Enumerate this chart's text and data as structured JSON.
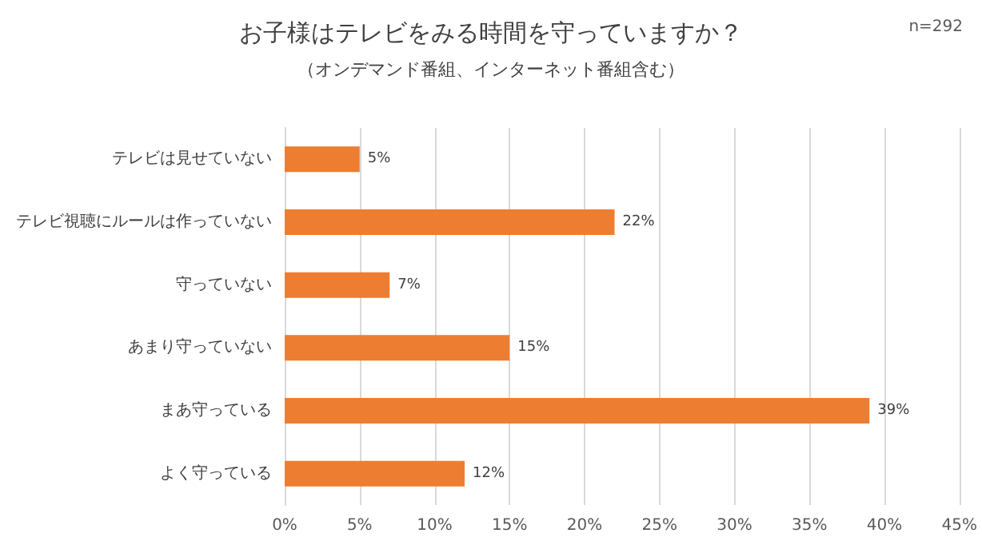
{
  "chart_data": {
    "type": "bar",
    "orientation": "horizontal",
    "title": "お子様はテレビをみる時間を守っていますか？",
    "subtitle": "（オンデマンド番組、インターネット番組含む）",
    "annotations": [
      "n=292"
    ],
    "categories": [
      "テレビは見せていない",
      "テレビ視聴にルールは作っていない",
      "守っていない",
      "あまり守っていない",
      "まあ守っている",
      "よく守っている"
    ],
    "values": [
      5,
      22,
      7,
      15,
      39,
      12
    ],
    "color": "#ed7d31",
    "value_labels": [
      "5%",
      "22%",
      "7%",
      "15%",
      "39%",
      "12%"
    ],
    "xlim": [
      0,
      45
    ],
    "xticks": [
      {
        "value": 0,
        "label": "0%"
      },
      {
        "value": 5,
        "label": "5%"
      },
      {
        "value": 10,
        "label": "10%"
      },
      {
        "value": 15,
        "label": "15%"
      },
      {
        "value": 20,
        "label": "20%"
      },
      {
        "value": 25,
        "label": "25%"
      },
      {
        "value": 30,
        "label": "30%"
      },
      {
        "value": 35,
        "label": "35%"
      },
      {
        "value": 40,
        "label": "40%"
      },
      {
        "value": 45,
        "label": "45%"
      }
    ],
    "grid": "x"
  }
}
